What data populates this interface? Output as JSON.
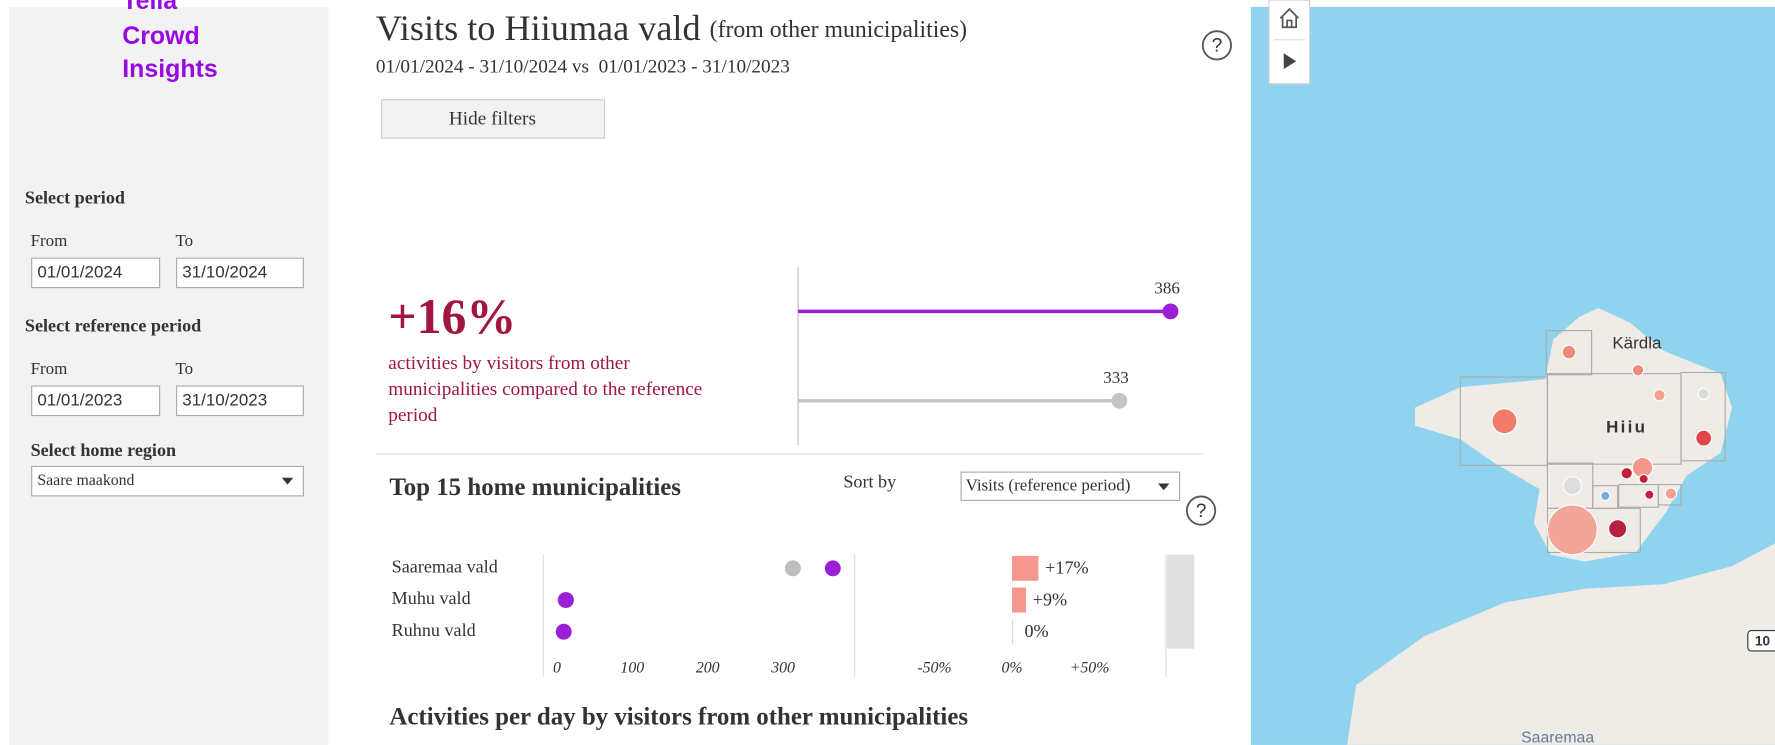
{
  "sidebar": {
    "brand": [
      "Telia",
      "Crowd",
      "Insights"
    ],
    "period_label": "Select period",
    "from_label": "From",
    "to_label": "To",
    "period_from": "01/01/2024",
    "period_to": "31/10/2024",
    "reference_label": "Select reference period",
    "reference_from": "01/01/2023",
    "reference_to": "31/10/2023",
    "home_region_label": "Select home region",
    "home_region": "Saare maakond"
  },
  "header": {
    "title": "Visits to Hiiumaa vald",
    "title_suffix": "(from other municipalities)",
    "period_text": "01/01/2024 - 31/10/2024 vs  01/01/2023 - 31/10/2023",
    "hide_filters": "Hide filters",
    "help_icon": "?"
  },
  "kpi": {
    "change": "+16%",
    "description_lines": [
      "activities by visitors from other",
      "municipalities compared to the reference",
      "period"
    ],
    "color": "#a0163f"
  },
  "summary": {
    "type": "lollipop",
    "values": [
      386,
      333
    ],
    "colors": [
      "#9b1fd6",
      "#c4c4c4"
    ]
  },
  "top15": {
    "title": "Top 15 home municipalities",
    "sort_label": "Sort by",
    "sort_value": "Visits (reference period)",
    "categories": [
      "Saaremaa vald",
      "Muhu vald",
      "Ruhnu vald"
    ],
    "visits": {
      "type": "dot",
      "series": [
        {
          "color": "#bdbdbd",
          "values": [
            313,
            11,
            9
          ]
        },
        {
          "color": "#9b1fd6",
          "values": [
            366,
            12,
            9
          ]
        }
      ],
      "xlim": [
        -18,
        395
      ],
      "xticks": [
        0,
        100,
        200,
        300
      ]
    },
    "change": {
      "type": "bar",
      "values": [
        17,
        9,
        0
      ],
      "value_labels": [
        "+17%",
        "+9%",
        "0%"
      ],
      "color": "#f4978e",
      "xlim": [
        -100,
        100
      ],
      "xticks": [
        {
          "value": -50,
          "label": "-50%"
        },
        {
          "value": 0,
          "label": "0%"
        },
        {
          "value": 50,
          "label": "+50%"
        }
      ]
    }
  },
  "daily_title": "Activities per day by visitors from other municipalities",
  "map": {
    "labels": [
      "Kärdla",
      "Hiiu",
      "Saaremaa",
      "10"
    ]
  }
}
